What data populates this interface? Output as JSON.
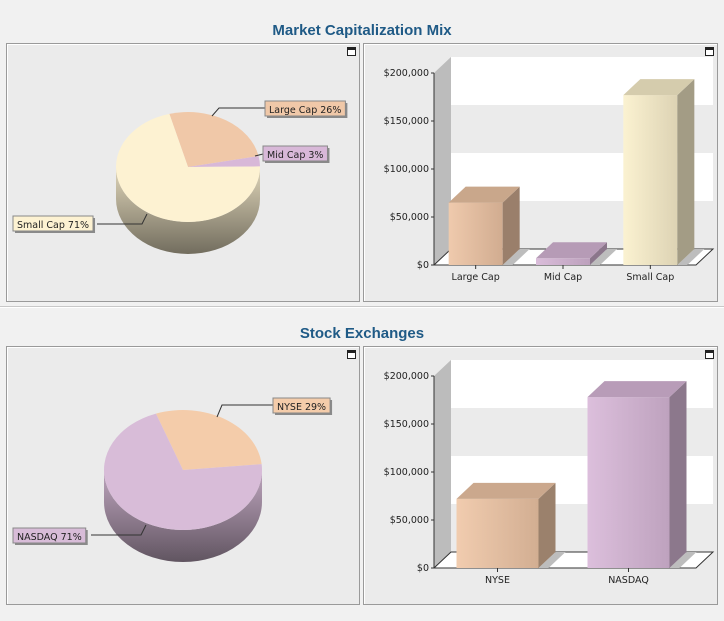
{
  "sections": [
    {
      "title": "Market Capitalization Mix",
      "pie": {
        "startAngle": -105,
        "slices": [
          {
            "label": "Large Cap 26%",
            "value": 26,
            "color": "#f0c8a8"
          },
          {
            "label": "Mid Cap 3%",
            "value": 3,
            "color": "#d8b8d8"
          },
          {
            "label": "Small Cap 71%",
            "value": 71,
            "color": "#fdf2d2"
          }
        ]
      },
      "bar": {
        "type": "bar",
        "categories": [
          "Large Cap",
          "Mid Cap",
          "Small Cap"
        ],
        "values": [
          65000,
          7000,
          177000
        ],
        "colors": [
          "#edc4a4",
          "#d6b6d6",
          "#fbf0cc"
        ],
        "ylim": [
          0,
          200000
        ],
        "ticks": [
          "$0",
          "$50,000",
          "$100,000",
          "$150,000",
          "$200,000"
        ]
      }
    },
    {
      "title": "Stock Exchanges",
      "pie": {
        "startAngle": -110,
        "slices": [
          {
            "label": "NYSE 29%",
            "value": 29,
            "color": "#f4ccaa"
          },
          {
            "label": "NASDAQ 71%",
            "value": 71,
            "color": "#d8bcd8"
          }
        ]
      },
      "bar": {
        "type": "bar",
        "categories": [
          "NYSE",
          "NASDAQ"
        ],
        "values": [
          72000,
          178000
        ],
        "colors": [
          "#efc6a6",
          "#d8b8d8"
        ],
        "ylim": [
          0,
          200000
        ],
        "ticks": [
          "$0",
          "$50,000",
          "$100,000",
          "$150,000",
          "$200,000"
        ]
      }
    }
  ],
  "chart_data": [
    {
      "type": "pie",
      "title": "Market Capitalization Mix",
      "categories": [
        "Large Cap",
        "Mid Cap",
        "Small Cap"
      ],
      "values": [
        26,
        3,
        71
      ]
    },
    {
      "type": "bar",
      "title": "Market Capitalization Mix",
      "categories": [
        "Large Cap",
        "Mid Cap",
        "Small Cap"
      ],
      "values": [
        65000,
        7000,
        177000
      ],
      "ylim": [
        0,
        200000
      ],
      "grid": true
    },
    {
      "type": "pie",
      "title": "Stock Exchanges",
      "categories": [
        "NYSE",
        "NASDAQ"
      ],
      "values": [
        29,
        71
      ]
    },
    {
      "type": "bar",
      "title": "Stock Exchanges",
      "categories": [
        "NYSE",
        "NASDAQ"
      ],
      "values": [
        72000,
        178000
      ],
      "ylim": [
        0,
        200000
      ],
      "grid": true
    }
  ]
}
